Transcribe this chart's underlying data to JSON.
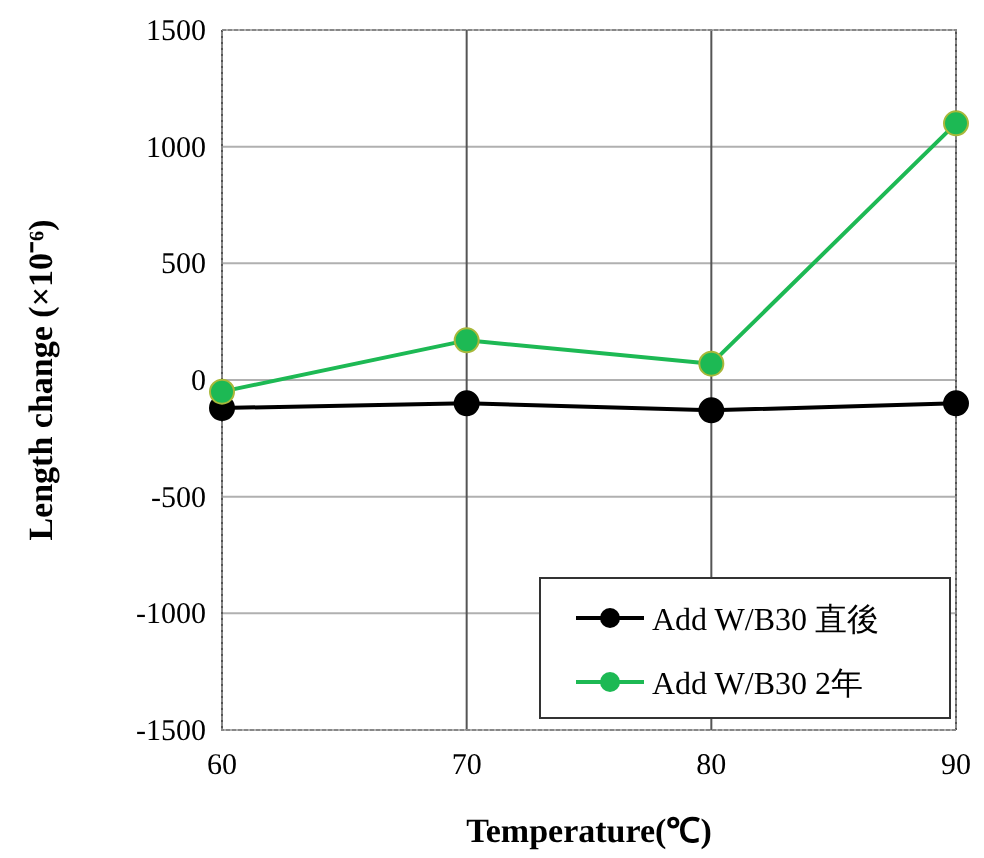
{
  "chart_data": {
    "type": "line",
    "xlabel": "Temperature(℃)",
    "ylabel": "Length change (×10⁻⁶)",
    "x": [
      60,
      70,
      80,
      90
    ],
    "xlim": [
      60,
      90
    ],
    "xticks": [
      60,
      70,
      80,
      90
    ],
    "ylim": [
      -1500,
      1500
    ],
    "yticks": [
      -1500,
      -1000,
      -500,
      0,
      500,
      1000,
      1500
    ],
    "series": [
      {
        "name": "Add W/B30 直後",
        "color": "#000000",
        "values": [
          -120,
          -100,
          -130,
          -100
        ]
      },
      {
        "name": "Add W/B30 2年",
        "color": "#1db954",
        "values": [
          -50,
          170,
          70,
          1100
        ]
      }
    ],
    "grid": true,
    "legend": "bottom right",
    "marker": "circle",
    "line_style": "solid"
  }
}
